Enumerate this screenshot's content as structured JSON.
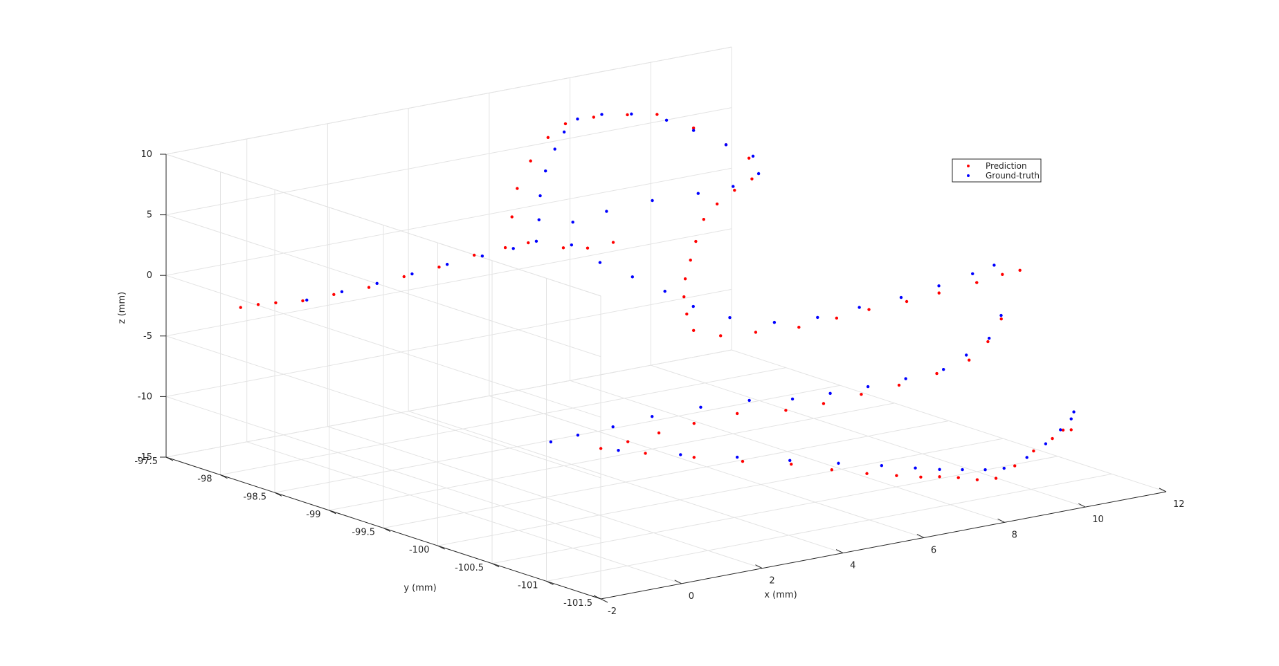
{
  "chart_data": {
    "type": "scatter",
    "dimensions": 3,
    "title": "",
    "xlabel": "x (mm)",
    "ylabel": "y (mm)",
    "zlabel": "z (mm)",
    "xlim": [
      -2,
      12
    ],
    "ylim": [
      -101.5,
      -97.5
    ],
    "zlim": [
      -15,
      10
    ],
    "xticks": [
      "-2",
      "0",
      "2",
      "4",
      "6",
      "8",
      "10",
      "12"
    ],
    "yticks": [
      "-97.5",
      "-98",
      "-98.5",
      "-99",
      "-99.5",
      "-100",
      "-100.5",
      "-101",
      "-101.5"
    ],
    "zticks": [
      "10",
      "5",
      "0",
      "-5",
      "-10",
      "-15"
    ],
    "grid": true,
    "legend_position": "top-right",
    "series": [
      {
        "name": "Prediction",
        "color": "#ff0000",
        "marker": "dot",
        "points": [
          [
            -1.5,
            -98.0,
            -1.5
          ],
          [
            -1.2,
            -98.05,
            -1.3
          ],
          [
            -0.9,
            -98.1,
            -1.2
          ],
          [
            -0.5,
            -98.2,
            -1.0
          ],
          [
            0.0,
            -98.3,
            -0.5
          ],
          [
            0.6,
            -98.4,
            0.0
          ],
          [
            1.2,
            -98.5,
            0.8
          ],
          [
            1.8,
            -98.6,
            1.5
          ],
          [
            2.4,
            -98.7,
            2.4
          ],
          [
            2.9,
            -98.8,
            3.0
          ],
          [
            3.2,
            -98.9,
            3.5
          ],
          [
            3.8,
            -99.0,
            3.0
          ],
          [
            4.4,
            -99.0,
            2.6
          ],
          [
            4.9,
            -99.05,
            2.9
          ],
          [
            3.2,
            -98.75,
            5.2
          ],
          [
            3.6,
            -98.65,
            7.0
          ],
          [
            4.2,
            -98.55,
            8.6
          ],
          [
            4.9,
            -98.45,
            9.8
          ],
          [
            5.6,
            -98.35,
            10.2
          ],
          [
            6.3,
            -98.35,
            10.3
          ],
          [
            7.0,
            -98.4,
            10.2
          ],
          [
            7.6,
            -98.45,
            10.0
          ],
          [
            8.1,
            -98.6,
            9.0
          ],
          [
            8.5,
            -98.75,
            7.8
          ],
          [
            8.8,
            -98.85,
            6.8
          ],
          [
            8.2,
            -99.1,
            6.2
          ],
          [
            7.5,
            -99.2,
            6.0
          ],
          [
            6.8,
            -99.3,
            5.6
          ],
          [
            6.2,
            -99.4,
            5.0
          ],
          [
            5.6,
            -99.55,
            4.0
          ],
          [
            5.2,
            -99.65,
            3.0
          ],
          [
            4.8,
            -99.75,
            2.0
          ],
          [
            4.5,
            -99.85,
            1.0
          ],
          [
            4.3,
            -99.95,
            0.0
          ],
          [
            4.2,
            -100.05,
            -1.0
          ],
          [
            4.6,
            -100.15,
            -1.4
          ],
          [
            5.2,
            -100.25,
            -1.2
          ],
          [
            6.0,
            -100.35,
            -1.0
          ],
          [
            6.8,
            -100.4,
            -0.6
          ],
          [
            7.6,
            -100.4,
            -0.4
          ],
          [
            8.4,
            -100.45,
            -0.1
          ],
          [
            9.2,
            -100.45,
            0.1
          ],
          [
            10.0,
            -100.5,
            0.6
          ],
          [
            10.5,
            -100.55,
            1.1
          ],
          [
            10.8,
            -100.6,
            1.4
          ],
          [
            9.8,
            -100.8,
            -1.4
          ],
          [
            9.2,
            -100.9,
            -2.6
          ],
          [
            8.6,
            -100.95,
            -3.6
          ],
          [
            7.8,
            -100.95,
            -4.2
          ],
          [
            7.0,
            -100.9,
            -4.8
          ],
          [
            6.2,
            -100.85,
            -5.2
          ],
          [
            5.4,
            -100.8,
            -5.6
          ],
          [
            4.6,
            -100.75,
            -5.8
          ],
          [
            3.8,
            -100.6,
            -6.0
          ],
          [
            3.0,
            -100.5,
            -6.6
          ],
          [
            2.4,
            -100.4,
            -7.3
          ],
          [
            1.9,
            -100.3,
            -8.0
          ],
          [
            1.5,
            -100.2,
            -8.6
          ],
          [
            2.2,
            -100.35,
            -9.0
          ],
          [
            3.0,
            -100.5,
            -9.4
          ],
          [
            3.8,
            -100.65,
            -9.8
          ],
          [
            4.6,
            -100.8,
            -10.1
          ],
          [
            5.2,
            -100.95,
            -10.5
          ],
          [
            5.8,
            -101.05,
            -10.9
          ],
          [
            6.4,
            -101.1,
            -11.3
          ],
          [
            7.0,
            -101.1,
            -11.8
          ],
          [
            7.6,
            -101.05,
            -12.3
          ],
          [
            8.2,
            -101.0,
            -12.9
          ],
          [
            8.8,
            -100.95,
            -13.6
          ],
          [
            9.4,
            -100.9,
            -14.0
          ],
          [
            10.0,
            -100.85,
            -13.5
          ],
          [
            10.6,
            -100.8,
            -12.8
          ],
          [
            11.2,
            -100.75,
            -12.3
          ],
          [
            11.6,
            -100.7,
            -12.0
          ],
          [
            11.8,
            -100.7,
            -12.1
          ]
        ]
      },
      {
        "name": "Ground-truth",
        "color": "#0000ff",
        "marker": "dot",
        "points": [
          [
            -0.4,
            -98.2,
            -1.0
          ],
          [
            0.2,
            -98.3,
            -0.4
          ],
          [
            0.8,
            -98.4,
            0.2
          ],
          [
            1.4,
            -98.5,
            0.9
          ],
          [
            2.0,
            -98.6,
            1.6
          ],
          [
            2.6,
            -98.7,
            2.2
          ],
          [
            3.1,
            -98.8,
            2.8
          ],
          [
            3.4,
            -98.9,
            3.5
          ],
          [
            3.6,
            -98.85,
            5.0
          ],
          [
            3.9,
            -98.75,
            6.5
          ],
          [
            4.3,
            -98.65,
            8.0
          ],
          [
            4.8,
            -98.55,
            9.2
          ],
          [
            5.3,
            -98.45,
            10.0
          ],
          [
            5.9,
            -98.35,
            10.4
          ],
          [
            6.5,
            -98.35,
            10.4
          ],
          [
            7.1,
            -98.4,
            10.2
          ],
          [
            7.7,
            -98.5,
            9.6
          ],
          [
            8.1,
            -98.6,
            8.8
          ],
          [
            8.5,
            -98.75,
            7.8
          ],
          [
            8.9,
            -98.85,
            6.9
          ],
          [
            8.5,
            -99.05,
            6.3
          ],
          [
            7.6,
            -99.15,
            6.1
          ],
          [
            6.6,
            -99.2,
            6.3
          ],
          [
            5.6,
            -99.15,
            6.2
          ],
          [
            4.6,
            -99.1,
            5.8
          ],
          [
            3.9,
            -99.05,
            5.2
          ],
          [
            3.6,
            -99.15,
            3.8
          ],
          [
            3.9,
            -99.3,
            2.6
          ],
          [
            4.3,
            -99.45,
            1.6
          ],
          [
            4.7,
            -99.6,
            0.6
          ],
          [
            5.0,
            -99.75,
            -0.4
          ],
          [
            5.5,
            -99.9,
            -1.2
          ],
          [
            6.2,
            -100.05,
            -1.6
          ],
          [
            7.0,
            -100.15,
            -1.4
          ],
          [
            7.9,
            -100.2,
            -1.0
          ],
          [
            8.8,
            -100.25,
            -0.6
          ],
          [
            9.6,
            -100.3,
            0.0
          ],
          [
            10.3,
            -100.35,
            0.7
          ],
          [
            10.7,
            -100.4,
            1.3
          ],
          [
            10.2,
            -100.65,
            -1.8
          ],
          [
            9.5,
            -100.8,
            -2.8
          ],
          [
            8.8,
            -100.85,
            -3.6
          ],
          [
            8.1,
            -100.9,
            -4.2
          ],
          [
            7.3,
            -100.85,
            -4.6
          ],
          [
            6.5,
            -100.8,
            -4.9
          ],
          [
            5.7,
            -100.75,
            -5.1
          ],
          [
            4.9,
            -100.7,
            -5.2
          ],
          [
            4.1,
            -100.6,
            -5.1
          ],
          [
            3.3,
            -100.45,
            -5.6
          ],
          [
            2.5,
            -100.3,
            -6.3
          ],
          [
            1.8,
            -100.2,
            -7.0
          ],
          [
            1.2,
            -100.1,
            -7.6
          ],
          [
            0.8,
            -100.0,
            -8.2
          ],
          [
            1.8,
            -100.25,
            -8.8
          ],
          [
            2.8,
            -100.45,
            -9.2
          ],
          [
            3.8,
            -100.6,
            -9.6
          ],
          [
            4.7,
            -100.75,
            -10.0
          ],
          [
            5.5,
            -100.9,
            -10.3
          ],
          [
            6.3,
            -101.0,
            -10.7
          ],
          [
            7.0,
            -101.05,
            -11.2
          ],
          [
            7.6,
            -101.05,
            -11.7
          ],
          [
            8.3,
            -101.0,
            -12.3
          ],
          [
            9.0,
            -100.95,
            -12.9
          ],
          [
            9.6,
            -100.9,
            -13.3
          ],
          [
            10.3,
            -100.85,
            -13.0
          ],
          [
            10.9,
            -100.8,
            -12.4
          ],
          [
            11.4,
            -100.75,
            -11.7
          ],
          [
            11.8,
            -100.7,
            -11.2
          ],
          [
            12.0,
            -100.65,
            -10.9
          ]
        ]
      }
    ]
  }
}
